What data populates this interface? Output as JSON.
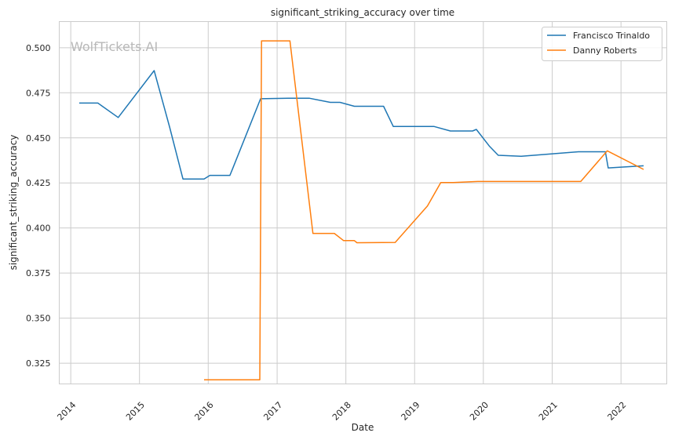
{
  "chart_data": {
    "type": "line",
    "title": "significant_striking_accuracy over time",
    "xlabel": "Date",
    "ylabel": "significant_striking_accuracy",
    "watermark": "WolfTickets.AI",
    "xlim": [
      "2013-11-01",
      "2022-09-01"
    ],
    "ylim": [
      0.3135,
      0.5145
    ],
    "x_ticks": [
      "2014",
      "2015",
      "2016",
      "2017",
      "2018",
      "2019",
      "2020",
      "2021",
      "2022"
    ],
    "y_ticks": [
      "0.325",
      "0.350",
      "0.375",
      "0.400",
      "0.425",
      "0.450",
      "0.475",
      "0.500"
    ],
    "grid": true,
    "legend_position": "top-right",
    "series": [
      {
        "name": "Francisco Trinaldo",
        "color": "#1f77b4",
        "points": [
          [
            "2014-02-15",
            0.4693
          ],
          [
            "2014-05-25",
            0.4693
          ],
          [
            "2014-09-10",
            0.4613
          ],
          [
            "2015-03-20",
            0.4873
          ],
          [
            "2015-06-10",
            0.456
          ],
          [
            "2015-08-20",
            0.4272
          ],
          [
            "2015-12-10",
            0.4272
          ],
          [
            "2016-01-10",
            0.4292
          ],
          [
            "2016-04-25",
            0.4292
          ],
          [
            "2016-05-10",
            0.433
          ],
          [
            "2016-10-05",
            0.4717
          ],
          [
            "2017-03-01",
            0.472
          ],
          [
            "2017-06-20",
            0.472
          ],
          [
            "2017-10-10",
            0.4697
          ],
          [
            "2017-12-01",
            0.4697
          ],
          [
            "2018-02-15",
            0.4675
          ],
          [
            "2018-07-20",
            0.4675
          ],
          [
            "2018-09-10",
            0.4563
          ],
          [
            "2019-04-15",
            0.4563
          ],
          [
            "2019-07-10",
            0.4538
          ],
          [
            "2019-11-05",
            0.4538
          ],
          [
            "2019-11-25",
            0.4547
          ],
          [
            "2020-02-01",
            0.4455
          ],
          [
            "2020-03-20",
            0.4403
          ],
          [
            "2020-07-20",
            0.4398
          ],
          [
            "2021-05-20",
            0.4423
          ],
          [
            "2021-10-10",
            0.4423
          ],
          [
            "2021-10-25",
            0.4333
          ],
          [
            "2022-05-01",
            0.4345
          ]
        ]
      },
      {
        "name": "Danny Roberts",
        "color": "#ff7f0e",
        "points": [
          [
            "2015-12-10",
            0.3158
          ],
          [
            "2016-10-01",
            0.3158
          ],
          [
            "2016-10-10",
            0.5038
          ],
          [
            "2017-03-10",
            0.5038
          ],
          [
            "2017-07-10",
            0.397
          ],
          [
            "2017-11-01",
            0.397
          ],
          [
            "2017-12-20",
            0.393
          ],
          [
            "2018-02-15",
            0.393
          ],
          [
            "2018-03-01",
            0.3918
          ],
          [
            "2018-09-20",
            0.392
          ],
          [
            "2019-03-10",
            0.4122
          ],
          [
            "2019-05-20",
            0.4252
          ],
          [
            "2019-07-25",
            0.4252
          ],
          [
            "2019-12-01",
            0.4258
          ],
          [
            "2021-06-01",
            0.4258
          ],
          [
            "2021-10-20",
            0.4428
          ],
          [
            "2022-05-01",
            0.4325
          ]
        ]
      }
    ]
  }
}
